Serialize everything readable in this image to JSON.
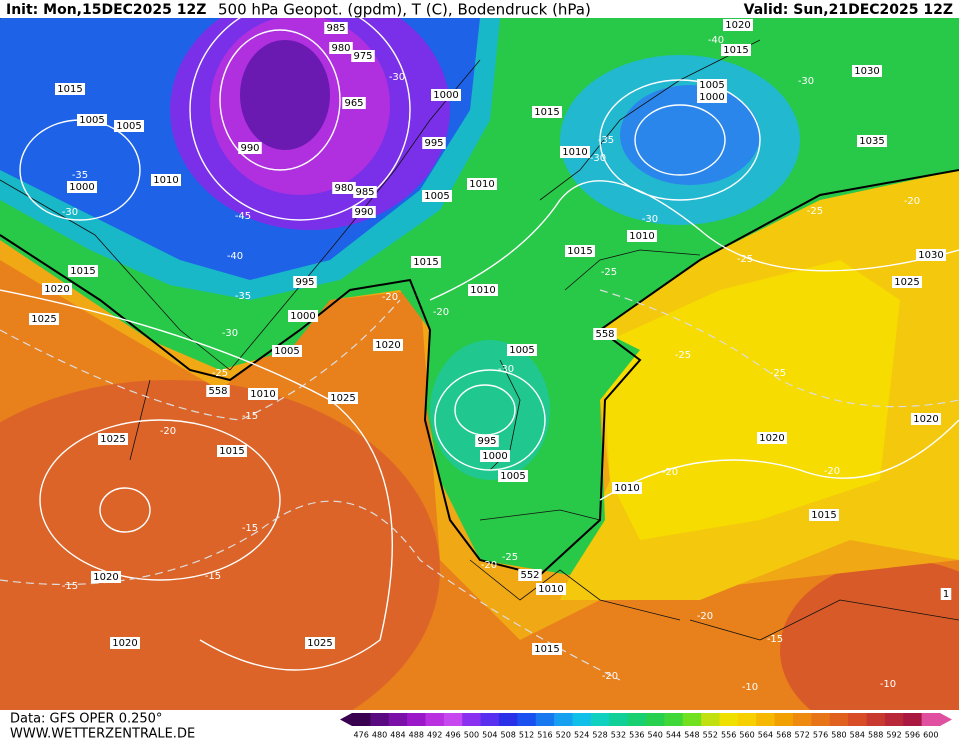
{
  "header": {
    "init": "Init: Mon,15DEC2025 12Z",
    "title": "500 hPa Geopot. (gpdm), T (C), Bodendruck (hPa)",
    "valid": "Valid: Sun,21DEC2025 12Z"
  },
  "footer": {
    "source": "Data: GFS OPER 0.250°",
    "site": "WWW.WETTERZENTRALE.DE"
  },
  "colorbar": {
    "levels": [
      476,
      480,
      484,
      488,
      492,
      496,
      500,
      504,
      508,
      512,
      516,
      520,
      524,
      528,
      532,
      536,
      540,
      544,
      548,
      552,
      556,
      560,
      564,
      568,
      572,
      576,
      580,
      584,
      588,
      592,
      596,
      600
    ],
    "colors": [
      "#3a0050",
      "#5a0a80",
      "#7a10a8",
      "#9a18c8",
      "#b830e0",
      "#c848f0",
      "#8a30f0",
      "#5a30f0",
      "#2a30e8",
      "#1a50f0",
      "#1878f0",
      "#18a0f0",
      "#10c0e8",
      "#10d0c0",
      "#10d098",
      "#18d070",
      "#28d050",
      "#40d838",
      "#70e020",
      "#c0e010",
      "#f0e000",
      "#f6d000",
      "#f6b800",
      "#f2a000",
      "#ee8a10",
      "#e87418",
      "#e06020",
      "#d84c28",
      "#c83a30",
      "#b82838",
      "#a81840",
      "#e050a0"
    ]
  },
  "labels": [
    "1015",
    "1005",
    "1005",
    "-35",
    "1000",
    "-30",
    "1010",
    "990",
    "-45",
    "-40",
    "1015",
    "1020",
    "1025",
    "-35",
    "-30",
    "995",
    "1000",
    "1005",
    "558",
    "-25",
    "1010",
    "-15",
    "1025",
    "1020",
    "-20",
    "-20",
    "1015",
    "1010",
    "1005",
    "990",
    "985",
    "980",
    "965",
    "995",
    "1000",
    "-30",
    "985",
    "980",
    "975",
    "1015",
    "1010",
    "-35",
    "-30",
    "1015",
    "1010",
    "-30",
    "-25",
    "1020",
    "-40",
    "1015",
    "1005",
    "1000",
    "-30",
    "1030",
    "1035",
    "-25",
    "-20",
    "-25",
    "1030",
    "1025",
    "1010",
    "558",
    "-25",
    "-25",
    "-30",
    "1005",
    "995",
    "1000",
    "1005",
    "1010",
    "1020",
    "1020",
    "-20",
    "-20",
    "1015",
    "-25",
    "-20",
    "552",
    "1010",
    "1015",
    "1025",
    "-20",
    "-15",
    "-15",
    "-15",
    "1020",
    "1020",
    "1025",
    "-20",
    "-15",
    "-20",
    "1015",
    "-10",
    "-10",
    "1"
  ]
}
